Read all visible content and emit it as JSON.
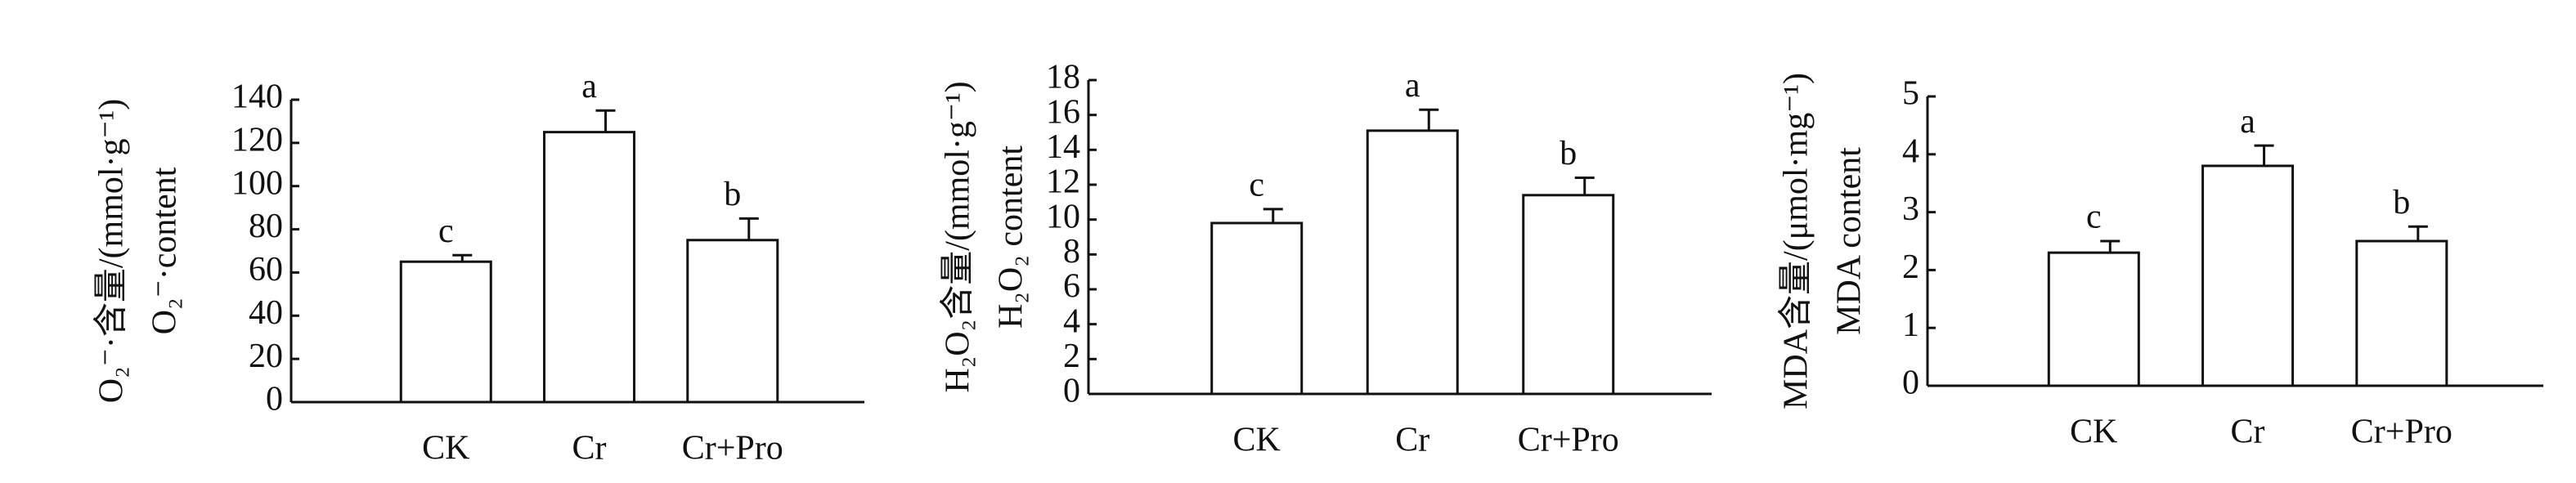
{
  "chart_data": [
    {
      "type": "bar",
      "ylabel": [
        "O₂⁻·含量/(mmol·g⁻¹)",
        "O₂⁻·content"
      ],
      "categories": [
        "CK",
        "Cr",
        "Cr+Pro"
      ],
      "values": [
        65,
        125,
        75
      ],
      "errors": [
        3,
        10,
        10
      ],
      "annotations": [
        "c",
        "a",
        "b"
      ],
      "color": "#ffffff",
      "ylim": [
        0,
        140
      ],
      "yticks": [
        0,
        20,
        40,
        60,
        80,
        100,
        120,
        140
      ]
    },
    {
      "type": "bar",
      "ylabel": [
        "H₂O₂含量/(mmol·g⁻¹)",
        "H₂O₂ content"
      ],
      "categories": [
        "CK",
        "Cr",
        "Cr+Pro"
      ],
      "values": [
        9.8,
        15.1,
        11.4
      ],
      "errors": [
        0.8,
        1.2,
        1.0
      ],
      "annotations": [
        "c",
        "a",
        "b"
      ],
      "color": "#ffffff",
      "ylim": [
        0,
        18
      ],
      "yticks": [
        0,
        2,
        4,
        6,
        8,
        10,
        12,
        14,
        16,
        18
      ]
    },
    {
      "type": "bar",
      "ylabel": [
        "MDA含量/(μmol·mg⁻¹)",
        "MDA content"
      ],
      "categories": [
        "CK",
        "Cr",
        "Cr+Pro"
      ],
      "values": [
        2.3,
        3.8,
        2.5
      ],
      "errors": [
        0.2,
        0.35,
        0.25
      ],
      "annotations": [
        "c",
        "a",
        "b"
      ],
      "color": "#ffffff",
      "ylim": [
        0,
        5
      ],
      "yticks": [
        0,
        1,
        2,
        3,
        4,
        5
      ]
    }
  ]
}
